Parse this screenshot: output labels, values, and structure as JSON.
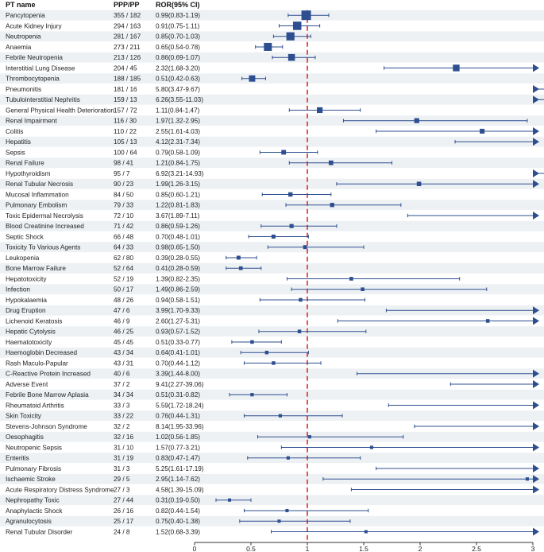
{
  "chart_data": {
    "type": "forest",
    "headers": {
      "pt": "PT name",
      "counts": "PPP/PP",
      "ror": "ROR(95% CI)"
    },
    "x_ticks": [
      0,
      0.5,
      1,
      1.5,
      2,
      2.5,
      3
    ],
    "xlim": [
      0,
      3
    ],
    "reference_line": 1,
    "colors": {
      "marker": "#2e4f8f",
      "stripe": "#edf1f4",
      "reference": "#e8232b",
      "axis": "#333333"
    },
    "rows": [
      {
        "pt": "Pancytopenia",
        "counts": "355 / 182",
        "ror": "0.99(0.83-1.19)",
        "est": 0.99,
        "lo": 0.83,
        "hi": 1.19,
        "w": 355
      },
      {
        "pt": "Acute Kidney Injury",
        "counts": "294 / 163",
        "ror": "0.91(0.75-1.11)",
        "est": 0.91,
        "lo": 0.75,
        "hi": 1.11,
        "w": 294
      },
      {
        "pt": "Neutropenia",
        "counts": "281 / 167",
        "ror": "0.85(0.70-1.03)",
        "est": 0.85,
        "lo": 0.7,
        "hi": 1.03,
        "w": 281
      },
      {
        "pt": "Anaemia",
        "counts": "273 / 211",
        "ror": "0.65(0.54-0.78)",
        "est": 0.65,
        "lo": 0.54,
        "hi": 0.78,
        "w": 273
      },
      {
        "pt": "Febrile Neutropenia",
        "counts": "213 / 126",
        "ror": "0.86(0.69-1.07)",
        "est": 0.86,
        "lo": 0.69,
        "hi": 1.07,
        "w": 213
      },
      {
        "pt": "Interstitial Lung Disease",
        "counts": "204 / 45",
        "ror": "2.32(1.68-3.20)",
        "est": 2.32,
        "lo": 1.68,
        "hi": 3.2,
        "w": 204
      },
      {
        "pt": "Thrombocytopenia",
        "counts": "188 / 185",
        "ror": "0.51(0.42-0.63)",
        "est": 0.51,
        "lo": 0.42,
        "hi": 0.63,
        "w": 188
      },
      {
        "pt": "Pneumonitis",
        "counts": "181 / 16",
        "ror": "5.80(3.47-9.67)",
        "est": 5.8,
        "lo": 3.47,
        "hi": 9.67,
        "w": 181
      },
      {
        "pt": "Tubulointerstitial Nephritis",
        "counts": "159 / 13",
        "ror": "6.26(3.55-11.03)",
        "est": 6.26,
        "lo": 3.55,
        "hi": 11.03,
        "w": 159
      },
      {
        "pt": "General Physical Health Deterioration",
        "counts": "157 / 72",
        "ror": "1.11(0.84-1.47)",
        "est": 1.11,
        "lo": 0.84,
        "hi": 1.47,
        "w": 157
      },
      {
        "pt": "Renal Impairment",
        "counts": "116 / 30",
        "ror": "1.97(1.32-2.95)",
        "est": 1.97,
        "lo": 1.32,
        "hi": 2.95,
        "w": 116
      },
      {
        "pt": "Colitis",
        "counts": "110 / 22",
        "ror": "2.55(1.61-4.03)",
        "est": 2.55,
        "lo": 1.61,
        "hi": 4.03,
        "w": 110
      },
      {
        "pt": "Hepatitis",
        "counts": "105 / 13",
        "ror": "4.12(2.31-7.34)",
        "est": 4.12,
        "lo": 2.31,
        "hi": 7.34,
        "w": 105
      },
      {
        "pt": "Sepsis",
        "counts": "100 / 64",
        "ror": "0.79(0.58-1.09)",
        "est": 0.79,
        "lo": 0.58,
        "hi": 1.09,
        "w": 100
      },
      {
        "pt": "Renal Failure",
        "counts": "98 / 41",
        "ror": "1.21(0.84-1.75)",
        "est": 1.21,
        "lo": 0.84,
        "hi": 1.75,
        "w": 98
      },
      {
        "pt": "Hypothyroidism",
        "counts": "95 / 7",
        "ror": "6.92(3.21-14.93)",
        "est": 6.92,
        "lo": 3.21,
        "hi": 14.93,
        "w": 95
      },
      {
        "pt": "Renal Tubular Necrosis",
        "counts": "90 / 23",
        "ror": "1.99(1.26-3.15)",
        "est": 1.99,
        "lo": 1.26,
        "hi": 3.15,
        "w": 90
      },
      {
        "pt": "Mucosal Inflammation",
        "counts": "84 / 50",
        "ror": "0.85(0.60-1.21)",
        "est": 0.85,
        "lo": 0.6,
        "hi": 1.21,
        "w": 84
      },
      {
        "pt": "Pulmonary Embolism",
        "counts": "79 / 33",
        "ror": "1.22(0.81-1.83)",
        "est": 1.22,
        "lo": 0.81,
        "hi": 1.83,
        "w": 79
      },
      {
        "pt": "Toxic Epidermal Necrolysis",
        "counts": "72 / 10",
        "ror": "3.67(1.89-7.11)",
        "est": 3.67,
        "lo": 1.89,
        "hi": 7.11,
        "w": 72
      },
      {
        "pt": "Blood Creatinine Increased",
        "counts": "71 / 42",
        "ror": "0.86(0.59-1.26)",
        "est": 0.86,
        "lo": 0.59,
        "hi": 1.26,
        "w": 71
      },
      {
        "pt": "Septic Shock",
        "counts": "66 / 48",
        "ror": "0.70(0.48-1.01)",
        "est": 0.7,
        "lo": 0.48,
        "hi": 1.01,
        "w": 66
      },
      {
        "pt": "Toxicity To Various Agents",
        "counts": "64 / 33",
        "ror": "0.98(0.65-1.50)",
        "est": 0.98,
        "lo": 0.65,
        "hi": 1.5,
        "w": 64
      },
      {
        "pt": "Leukopenia",
        "counts": "62 / 80",
        "ror": "0.39(0.28-0.55)",
        "est": 0.39,
        "lo": 0.28,
        "hi": 0.55,
        "w": 62
      },
      {
        "pt": "Bone Marrow Failure",
        "counts": "52 / 64",
        "ror": "0.41(0.28-0.59)",
        "est": 0.41,
        "lo": 0.28,
        "hi": 0.59,
        "w": 52
      },
      {
        "pt": "Hepatotoxicity",
        "counts": "52 / 19",
        "ror": "1.39(0.82-2.35)",
        "est": 1.39,
        "lo": 0.82,
        "hi": 2.35,
        "w": 52
      },
      {
        "pt": "Infection",
        "counts": "50 / 17",
        "ror": "1.49(0.86-2.59)",
        "est": 1.49,
        "lo": 0.86,
        "hi": 2.59,
        "w": 50
      },
      {
        "pt": "Hypokalaemia",
        "counts": "48 / 26",
        "ror": "0.94(0.58-1.51)",
        "est": 0.94,
        "lo": 0.58,
        "hi": 1.51,
        "w": 48
      },
      {
        "pt": "Drug Eruption",
        "counts": "47 / 6",
        "ror": "3.99(1.70-9.33)",
        "est": 3.99,
        "lo": 1.7,
        "hi": 9.33,
        "w": 47
      },
      {
        "pt": "Lichenoid Keratosis",
        "counts": "46 / 9",
        "ror": "2.60(1.27-5.31)",
        "est": 2.6,
        "lo": 1.27,
        "hi": 5.31,
        "w": 46
      },
      {
        "pt": "Hepatic Cytolysis",
        "counts": "46 / 25",
        "ror": "0.93(0.57-1.52)",
        "est": 0.93,
        "lo": 0.57,
        "hi": 1.52,
        "w": 46
      },
      {
        "pt": "Haematotoxicity",
        "counts": "45 / 45",
        "ror": "0.51(0.33-0.77)",
        "est": 0.51,
        "lo": 0.33,
        "hi": 0.77,
        "w": 45
      },
      {
        "pt": "Haemoglobin Decreased",
        "counts": "43 / 34",
        "ror": "0.64(0.41-1.01)",
        "est": 0.64,
        "lo": 0.41,
        "hi": 1.01,
        "w": 43
      },
      {
        "pt": "Rash Maculo-Papular",
        "counts": "43 / 31",
        "ror": "0.70(0.44-1.12)",
        "est": 0.7,
        "lo": 0.44,
        "hi": 1.12,
        "w": 43
      },
      {
        "pt": "C-Reactive Protein Increased",
        "counts": "40 / 6",
        "ror": "3.39(1.44-8.00)",
        "est": 3.39,
        "lo": 1.44,
        "hi": 8.0,
        "w": 40
      },
      {
        "pt": "Adverse Event",
        "counts": "37 / 2",
        "ror": "9.41(2.27-39.06)",
        "est": 9.41,
        "lo": 2.27,
        "hi": 39.06,
        "w": 37
      },
      {
        "pt": "Febrile Bone Marrow Aplasia",
        "counts": "34 / 34",
        "ror": "0.51(0.31-0.82)",
        "est": 0.51,
        "lo": 0.31,
        "hi": 0.82,
        "w": 34
      },
      {
        "pt": "Rheumatoid Arthritis",
        "counts": "33 / 3",
        "ror": "5.59(1.72-18.24)",
        "est": 5.59,
        "lo": 1.72,
        "hi": 18.24,
        "w": 33
      },
      {
        "pt": "Skin Toxicity",
        "counts": "33 / 22",
        "ror": "0.76(0.44-1.31)",
        "est": 0.76,
        "lo": 0.44,
        "hi": 1.31,
        "w": 33
      },
      {
        "pt": "Stevens-Johnson Syndrome",
        "counts": "32 / 2",
        "ror": "8.14(1.95-33.96)",
        "est": 8.14,
        "lo": 1.95,
        "hi": 33.96,
        "w": 32
      },
      {
        "pt": "Oesophagitis",
        "counts": "32 / 16",
        "ror": "1.02(0.56-1.85)",
        "est": 1.02,
        "lo": 0.56,
        "hi": 1.85,
        "w": 32
      },
      {
        "pt": "Neutropenic Sepsis",
        "counts": "31 / 10",
        "ror": "1.57(0.77-3.21)",
        "est": 1.57,
        "lo": 0.77,
        "hi": 3.21,
        "w": 31
      },
      {
        "pt": "Enteritis",
        "counts": "31 / 19",
        "ror": "0.83(0.47-1.47)",
        "est": 0.83,
        "lo": 0.47,
        "hi": 1.47,
        "w": 31
      },
      {
        "pt": "Pulmonary Fibrosis",
        "counts": "31 / 3",
        "ror": "5.25(1.61-17.19)",
        "est": 5.25,
        "lo": 1.61,
        "hi": 17.19,
        "w": 31
      },
      {
        "pt": "Ischaemic Stroke",
        "counts": "29 / 5",
        "ror": "2.95(1.14-7.62)",
        "est": 2.95,
        "lo": 1.14,
        "hi": 7.62,
        "w": 29
      },
      {
        "pt": "Acute Respiratory Distress Syndrome",
        "counts": "27 / 3",
        "ror": "4.58(1.39-15.09)",
        "est": 4.58,
        "lo": 1.39,
        "hi": 15.09,
        "w": 27
      },
      {
        "pt": "Nephropathy Toxic",
        "counts": "27 / 44",
        "ror": "0.31(0.19-0.50)",
        "est": 0.31,
        "lo": 0.19,
        "hi": 0.5,
        "w": 27
      },
      {
        "pt": "Anaphylactic Shock",
        "counts": "26 / 16",
        "ror": "0.82(0.44-1.54)",
        "est": 0.82,
        "lo": 0.44,
        "hi": 1.54,
        "w": 26
      },
      {
        "pt": "Agranulocytosis",
        "counts": "25 / 17",
        "ror": "0.75(0.40-1.38)",
        "est": 0.75,
        "lo": 0.4,
        "hi": 1.38,
        "w": 25
      },
      {
        "pt": "Renal Tubular Disorder",
        "counts": "24 / 8",
        "ror": "1.52(0.68-3.39)",
        "est": 1.52,
        "lo": 0.68,
        "hi": 3.39,
        "w": 24
      }
    ]
  }
}
